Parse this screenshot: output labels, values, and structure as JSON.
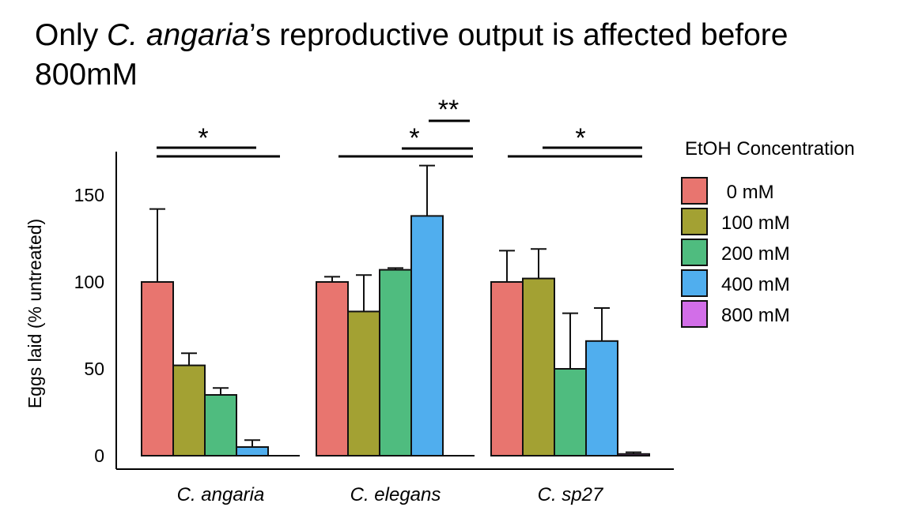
{
  "slide": {
    "title_prefix": "Only ",
    "title_species": "C. angaria",
    "title_suffix": "’s reproductive output is affected before 800mM"
  },
  "chart_data": {
    "type": "bar",
    "title": "",
    "xlabel": "",
    "ylabel": "Eggs laid (% untreated)",
    "ylim": [
      -8,
      175
    ],
    "yticks": [
      0,
      50,
      100,
      150
    ],
    "categories": [
      "C. angaria",
      "C. elegans",
      "C. sp27"
    ],
    "legend_title": "EtOH Concentration",
    "series": [
      {
        "name": "0 mM",
        "color": "#e8756f",
        "values": [
          100,
          100,
          100
        ],
        "errors": [
          42,
          3,
          18
        ]
      },
      {
        "name": "100 mM",
        "color": "#a3a133",
        "values": [
          52,
          83,
          102
        ],
        "errors": [
          7,
          21,
          17
        ]
      },
      {
        "name": "200 mM",
        "color": "#4fbc7f",
        "values": [
          35,
          107,
          50
        ],
        "errors": [
          4,
          1,
          32
        ]
      },
      {
        "name": "400 mM",
        "color": "#50aeee",
        "values": [
          5,
          138,
          66
        ],
        "errors": [
          4,
          29,
          19
        ]
      },
      {
        "name": "800 mM",
        "color": "#d26ee8",
        "values": [
          0,
          0,
          1
        ],
        "errors": [
          0,
          0,
          1
        ]
      }
    ],
    "significance": [
      {
        "category": "C. angaria",
        "label": "*"
      },
      {
        "category": "C. elegans",
        "label": "*"
      },
      {
        "category": "C. elegans",
        "label": "**"
      },
      {
        "category": "C. sp27",
        "label": "*"
      }
    ]
  }
}
